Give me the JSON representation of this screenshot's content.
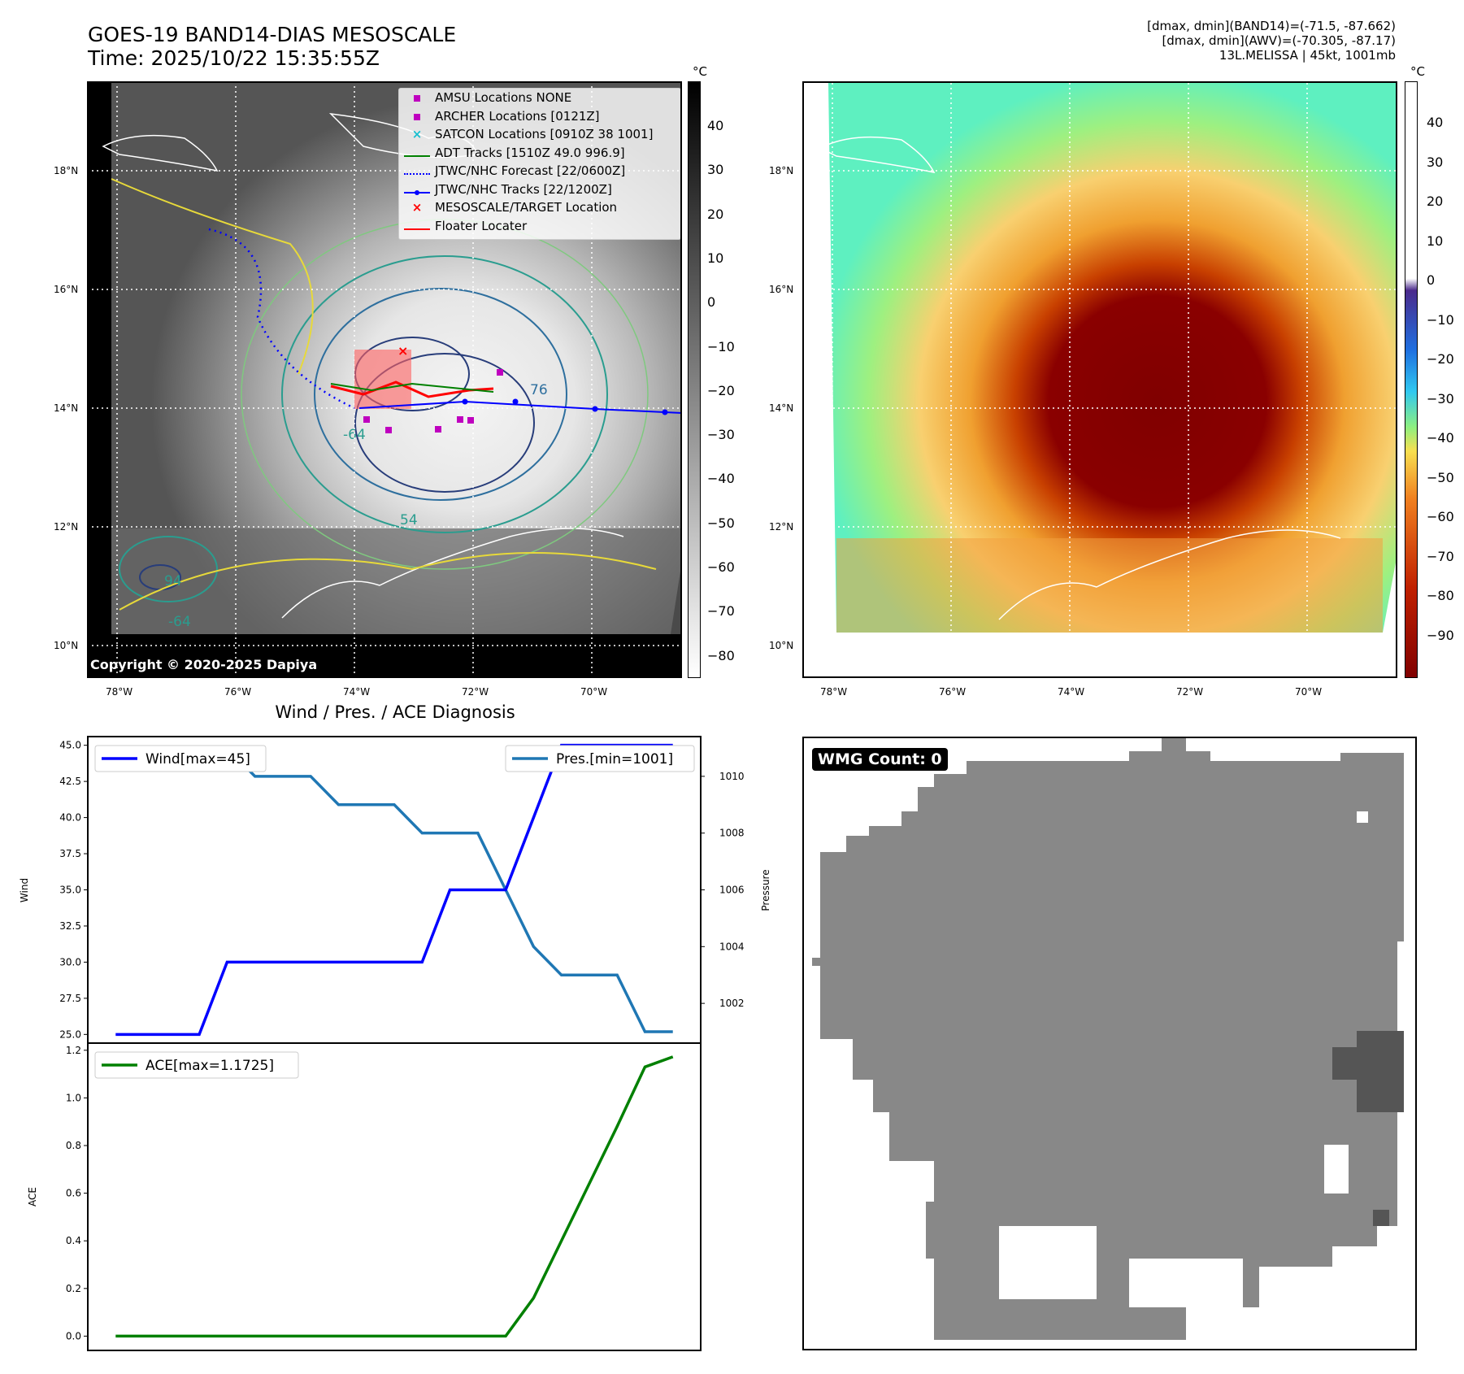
{
  "header": {
    "title_line1": "GOES-19 BAND14-DIAS MESOSCALE",
    "title_line2": "Time: 2025/10/22 15:35:55Z",
    "info_line1": "[dmax, dmin](BAND14)=(-71.5, -87.662)",
    "info_line2": "[dmax, dmin](AWV)=(-70.305, -87.17)",
    "info_line3": "13L.MELISSA | 45kt, 1001mb"
  },
  "map_axes": {
    "lon_labels": [
      "78°W",
      "76°W",
      "74°W",
      "72°W",
      "70°W"
    ],
    "lat_labels": [
      "18°N",
      "16°N",
      "14°N",
      "12°N",
      "10°N"
    ]
  },
  "ir_panel": {
    "copyright": "Copyright © 2020-2025 Dapiya",
    "colorbar_unit": "°C",
    "colorbar_ticks": [
      "40",
      "30",
      "20",
      "10",
      "0",
      "−10",
      "−20",
      "−30",
      "−40",
      "−50",
      "−60",
      "−70",
      "−80"
    ],
    "contour_labels": [
      "-64",
      "54",
      "76",
      "-64",
      "94"
    ],
    "legend": [
      {
        "label": "AMSU Locations NONE",
        "marker": "square",
        "color": "#bf00bf"
      },
      {
        "label": "ARCHER Locations [0121Z]",
        "marker": "square",
        "color": "#bf00bf"
      },
      {
        "label": "SATCON Locations [0910Z 38 1001]",
        "marker": "x",
        "color": "#17becf"
      },
      {
        "label": "ADT Tracks [1510Z 49.0 996.9]",
        "marker": "line",
        "color": "#008000"
      },
      {
        "label": "JTWC/NHC Forecast [22/0600Z]",
        "marker": "dotted",
        "color": "#0000ff"
      },
      {
        "label": "JTWC/NHC Tracks [22/1200Z]",
        "marker": "line-dot",
        "color": "#0000ff"
      },
      {
        "label": "MESOSCALE/TARGET Location",
        "marker": "x",
        "color": "#ff0000"
      },
      {
        "label": "Floater Locater",
        "marker": "line",
        "color": "#ff0000"
      }
    ]
  },
  "awv_panel": {
    "colorbar_unit": "°C",
    "colorbar_ticks": [
      "40",
      "30",
      "20",
      "10",
      "0",
      "−10",
      "−20",
      "−30",
      "−40",
      "−50",
      "−60",
      "−70",
      "−80",
      "−90"
    ]
  },
  "diagnosis": {
    "title": "Wind / Pres. / ACE Diagnosis",
    "wind_ylabel": "Wind",
    "pres_ylabel": "Pressure",
    "ace_ylabel": "ACE",
    "wind_legend": "Wind[max=45]",
    "pres_legend": "Pres.[min=1001]",
    "ace_legend": "ACE[max=1.1725]",
    "colors": {
      "wind": "#0000ff",
      "pres": "#1f77b4",
      "ace": "#008000"
    }
  },
  "wmg_panel": {
    "label": "WMG Count: 0"
  },
  "chart_data": [
    {
      "type": "line",
      "name": "wind",
      "x": [
        0,
        1,
        2,
        3,
        4,
        5,
        6,
        7,
        8,
        9,
        10,
        11,
        12,
        13,
        14,
        15,
        16,
        17,
        18,
        19,
        20
      ],
      "series": [
        {
          "name": "Wind[max=45]",
          "values": [
            25,
            25,
            25,
            25,
            30,
            30,
            30,
            30,
            30,
            30,
            30,
            30,
            35,
            35,
            35,
            40,
            45,
            45,
            45,
            45,
            45
          ]
        }
      ],
      "ylim": [
        24.4,
        45.6
      ],
      "yticks": [
        25.0,
        27.5,
        30.0,
        32.5,
        35.0,
        37.5,
        40.0,
        42.5,
        45.0
      ],
      "ylabel": "Wind"
    },
    {
      "type": "line",
      "name": "pressure",
      "x": [
        0,
        1,
        2,
        3,
        4,
        5,
        6,
        7,
        8,
        9,
        10,
        11,
        12,
        13,
        14,
        15,
        16,
        17,
        18,
        19,
        20
      ],
      "series": [
        {
          "name": "Pres.[min=1001]",
          "values": [
            1011,
            1011,
            1011,
            1011,
            1011,
            1010,
            1010,
            1010,
            1009,
            1009,
            1009,
            1008,
            1008,
            1008,
            1006,
            1004,
            1003,
            1003,
            1003,
            1001,
            1001
          ]
        }
      ],
      "ylim": [
        1000.6,
        1011.4
      ],
      "yticks": [
        1002,
        1004,
        1006,
        1008,
        1010
      ],
      "ylabel": "Pressure"
    },
    {
      "type": "line",
      "name": "ace",
      "x": [
        0,
        1,
        2,
        3,
        4,
        5,
        6,
        7,
        8,
        9,
        10,
        11,
        12,
        13,
        14,
        15,
        16,
        17,
        18,
        19,
        20
      ],
      "series": [
        {
          "name": "ACE[max=1.1725]",
          "values": [
            0,
            0,
            0,
            0,
            0,
            0,
            0,
            0,
            0,
            0,
            0,
            0,
            0,
            0,
            0,
            0.16,
            0.4,
            0.64,
            0.88,
            1.13,
            1.1725
          ]
        }
      ],
      "ylim": [
        -0.06,
        1.23
      ],
      "yticks": [
        0.0,
        0.2,
        0.4,
        0.6,
        0.8,
        1.0,
        1.2
      ],
      "ylabel": "ACE"
    }
  ]
}
